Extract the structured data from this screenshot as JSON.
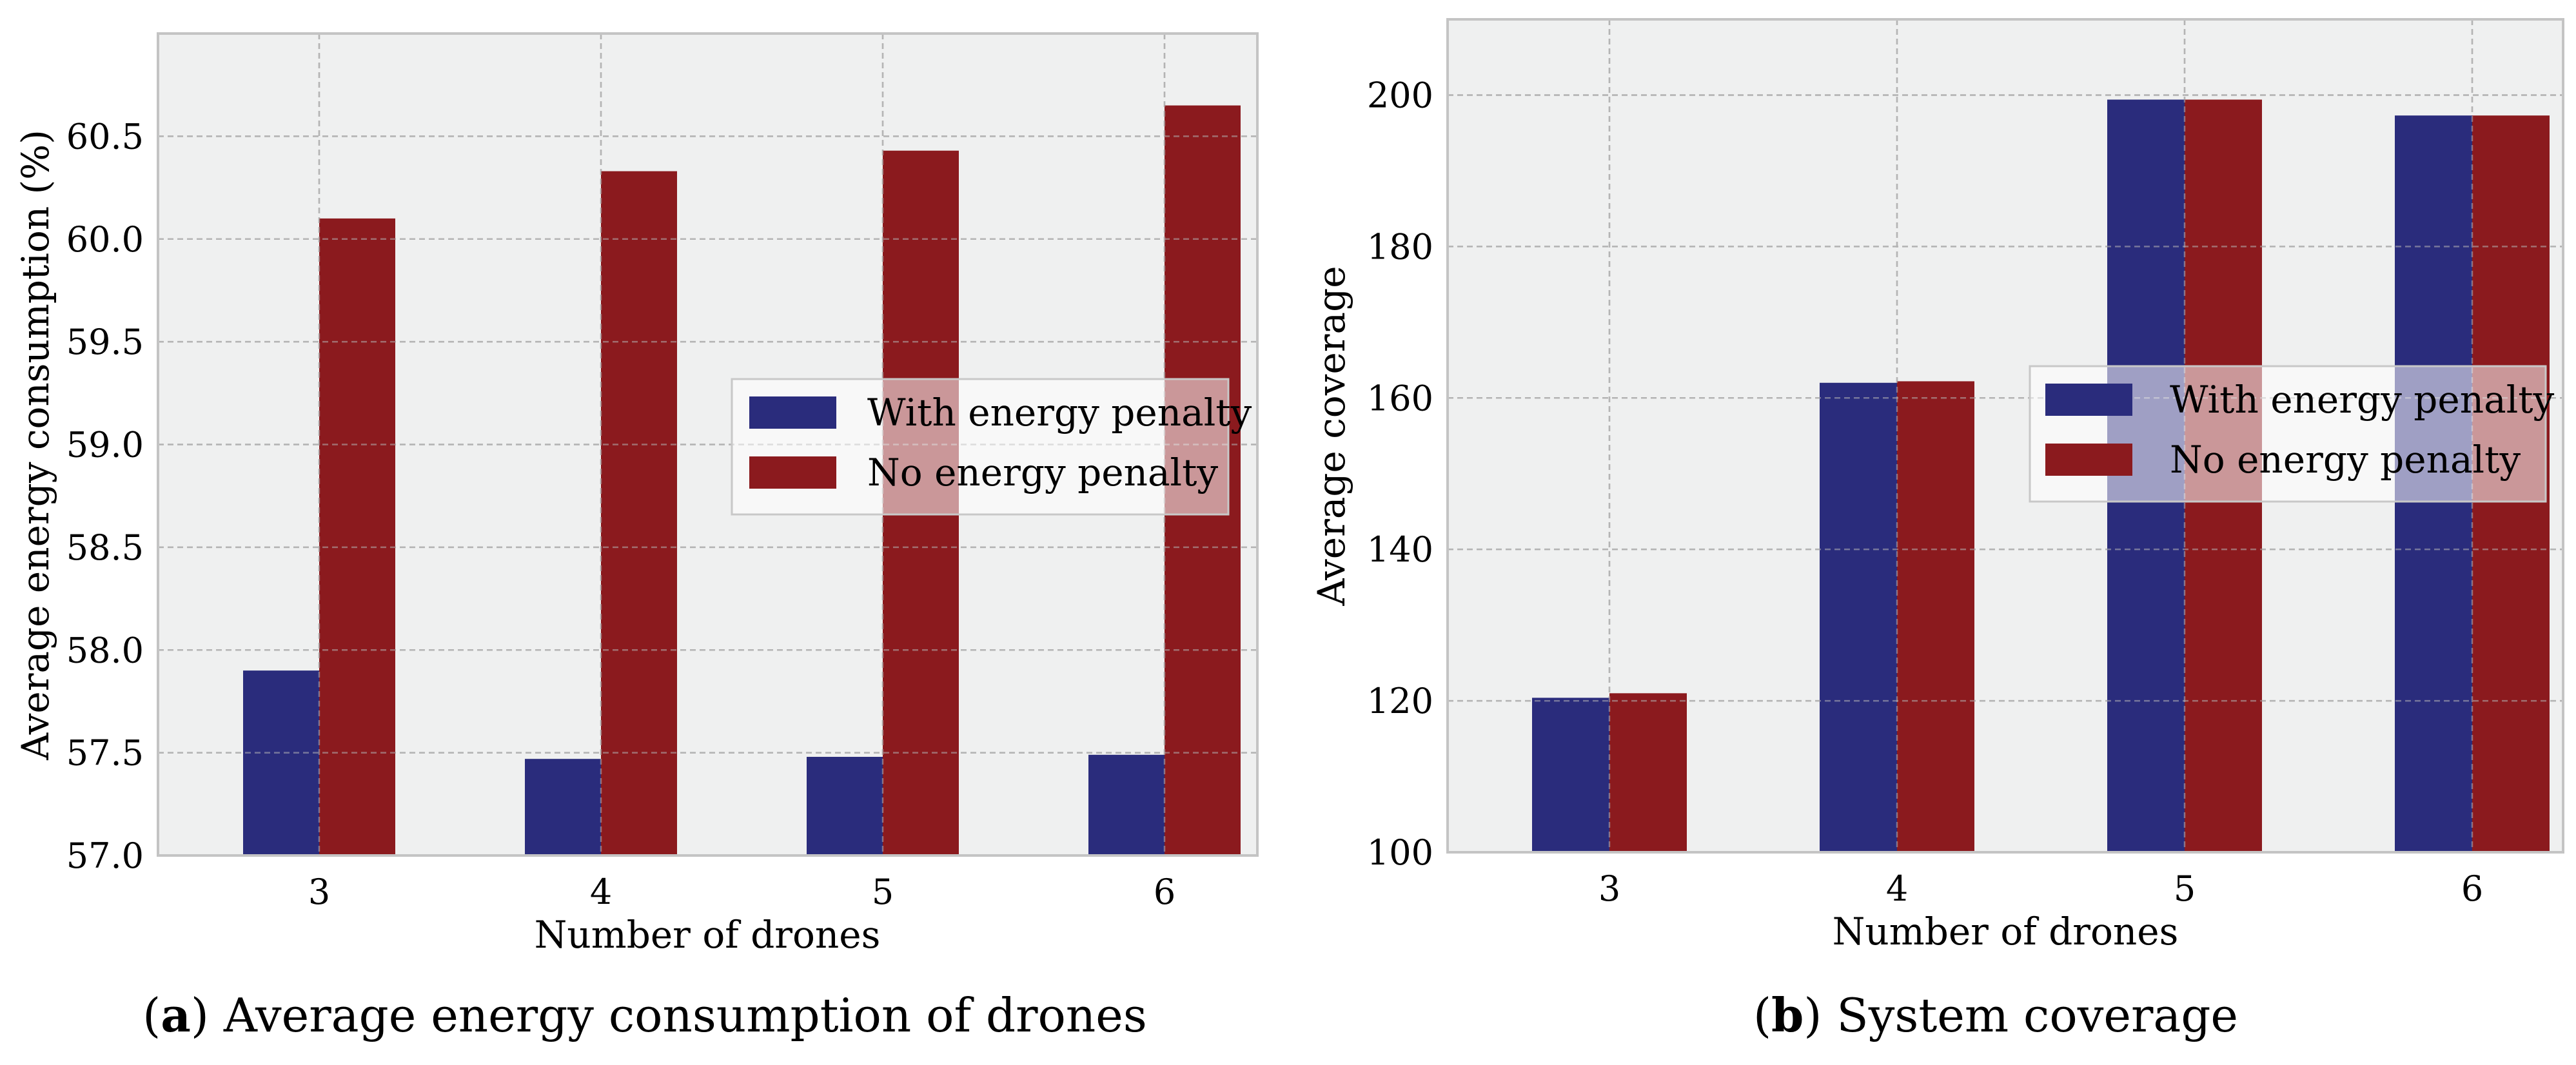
{
  "colors": {
    "with": "#2a2c7c",
    "without": "#8b1a1e",
    "panel_bg": "#eff0f0",
    "grid": "#b4b4b4",
    "frame": "#c4c4c4"
  },
  "chart_data": [
    {
      "type": "bar",
      "categories": [
        "3",
        "4",
        "5",
        "6"
      ],
      "series": [
        {
          "name": "With energy penalty",
          "values": [
            57.9,
            57.47,
            57.48,
            57.49
          ]
        },
        {
          "name": "No energy penalty",
          "values": [
            60.1,
            60.33,
            60.43,
            60.65
          ]
        }
      ],
      "xlabel": "Number of drones",
      "ylabel": "Average energy consumption (%)",
      "ylim": [
        57.0,
        61.0
      ],
      "yticks": [
        57.0,
        57.5,
        58.0,
        58.5,
        59.0,
        59.5,
        60.0,
        60.5
      ],
      "ytick_labels": [
        "57.0",
        "57.5",
        "58.0",
        "58.5",
        "59.0",
        "59.5",
        "60.0",
        "60.5"
      ],
      "grid": true,
      "legend_position": "center-right",
      "caption_letter": "a",
      "caption_open": "(",
      "caption_close": ")",
      "caption_text": " Average energy consumption of drones"
    },
    {
      "type": "bar",
      "categories": [
        "3",
        "4",
        "5",
        "6"
      ],
      "series": [
        {
          "name": "With energy penalty",
          "values": [
            120.4,
            162.0,
            199.4,
            197.3
          ]
        },
        {
          "name": "No energy penalty",
          "values": [
            121.0,
            162.2,
            199.4,
            197.3
          ]
        }
      ],
      "xlabel": "Number of drones",
      "ylabel": "Average coverage",
      "ylim": [
        100,
        210
      ],
      "yticks": [
        100,
        120,
        140,
        160,
        180,
        200
      ],
      "ytick_labels": [
        "100",
        "120",
        "140",
        "160",
        "180",
        "200"
      ],
      "grid": true,
      "legend_position": "upper-right",
      "caption_letter": "b",
      "caption_open": "(",
      "caption_close": ")",
      "caption_text": " System coverage"
    }
  ]
}
